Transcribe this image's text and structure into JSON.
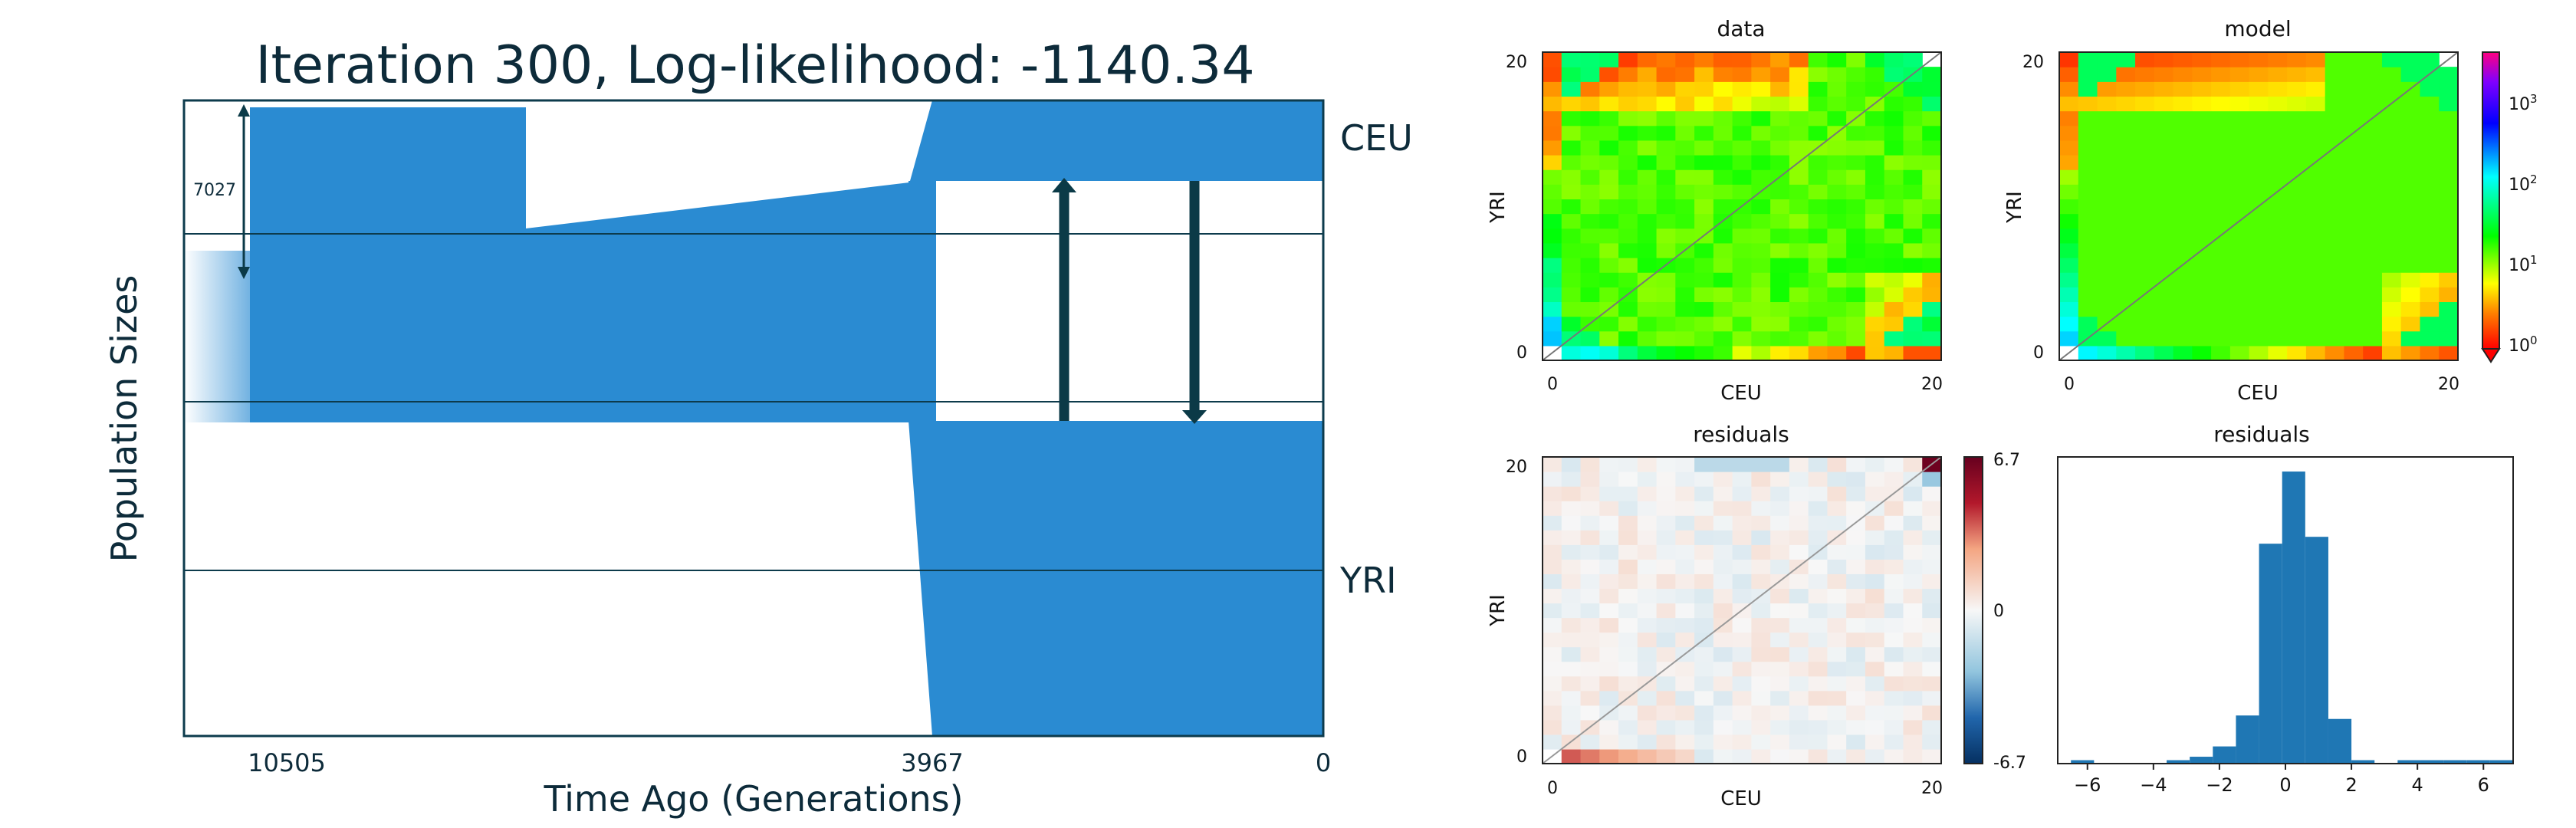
{
  "colors": {
    "population_fill": "#2a8bd2",
    "demography_line": "#0d3b4c",
    "migration_arrow": "#0b3a47",
    "title_text": "#0d2b3a",
    "hist_fill": "#1f77b4"
  },
  "chart_data": [
    {
      "type": "area",
      "title": "Iteration 300, Log-likelihood: -1140.34",
      "xlabel": "Time Ago (Generations)",
      "ylabel": "Population Sizes",
      "x_ticks": [
        "10505",
        "3967",
        "0"
      ],
      "series": [
        {
          "name": "CEU"
        },
        {
          "name": "YRI"
        }
      ],
      "size_annotation": "7027",
      "migration_arrows": 2,
      "grid": false
    },
    {
      "type": "heatmap",
      "title": "data",
      "xlabel": "CEU",
      "ylabel": "YRI",
      "x_ticks": [
        "0",
        "20"
      ],
      "y_ticks": [
        "0",
        "20"
      ],
      "grid_size": 21,
      "color_scale": "log"
    },
    {
      "type": "heatmap",
      "title": "model",
      "xlabel": "CEU",
      "ylabel": "YRI",
      "x_ticks": [
        "0",
        "20"
      ],
      "y_ticks": [
        "0",
        "20"
      ],
      "grid_size": 21,
      "color_scale": "log",
      "colorbar": {
        "ticks": [
          "10",
          "10",
          "10",
          "10"
        ],
        "exponents": [
          "0",
          "1",
          "2",
          "3"
        ]
      }
    },
    {
      "type": "heatmap",
      "title": "residuals",
      "xlabel": "CEU",
      "ylabel": "YRI",
      "x_ticks": [
        "0",
        "20"
      ],
      "y_ticks": [
        "0",
        "20"
      ],
      "grid_size": 21,
      "color_scale": "diverging",
      "colorbar": {
        "ticks": [
          "6.7",
          "0",
          "-6.7"
        ],
        "range": [
          -6.7,
          6.7
        ]
      }
    },
    {
      "type": "bar",
      "title": "residuals",
      "x_ticks": [
        "−6",
        "−4",
        "−2",
        "0",
        "2",
        "4",
        "6"
      ],
      "xlim": [
        -6.9,
        6.9
      ],
      "bins": [
        {
          "x0": -6.5,
          "x1": -5.8,
          "count": 1
        },
        {
          "x0": -3.6,
          "x1": -2.9,
          "count": 1
        },
        {
          "x0": -2.9,
          "x1": -2.2,
          "count": 2
        },
        {
          "x0": -2.2,
          "x1": -1.5,
          "count": 5
        },
        {
          "x0": -1.5,
          "x1": -0.8,
          "count": 14
        },
        {
          "x0": -0.8,
          "x1": -0.1,
          "count": 64
        },
        {
          "x0": -0.1,
          "x1": 0.6,
          "count": 85
        },
        {
          "x0": 0.6,
          "x1": 1.3,
          "count": 66
        },
        {
          "x0": 1.3,
          "x1": 2.0,
          "count": 13
        },
        {
          "x0": 2.0,
          "x1": 2.7,
          "count": 1
        },
        {
          "x0": 3.4,
          "x1": 4.1,
          "count": 1
        },
        {
          "x0": 4.1,
          "x1": 4.8,
          "count": 1
        },
        {
          "x0": 4.8,
          "x1": 5.5,
          "count": 1
        },
        {
          "x0": 5.5,
          "x1": 6.2,
          "count": 1
        },
        {
          "x0": 6.2,
          "x1": 6.9,
          "count": 1
        }
      ]
    }
  ]
}
